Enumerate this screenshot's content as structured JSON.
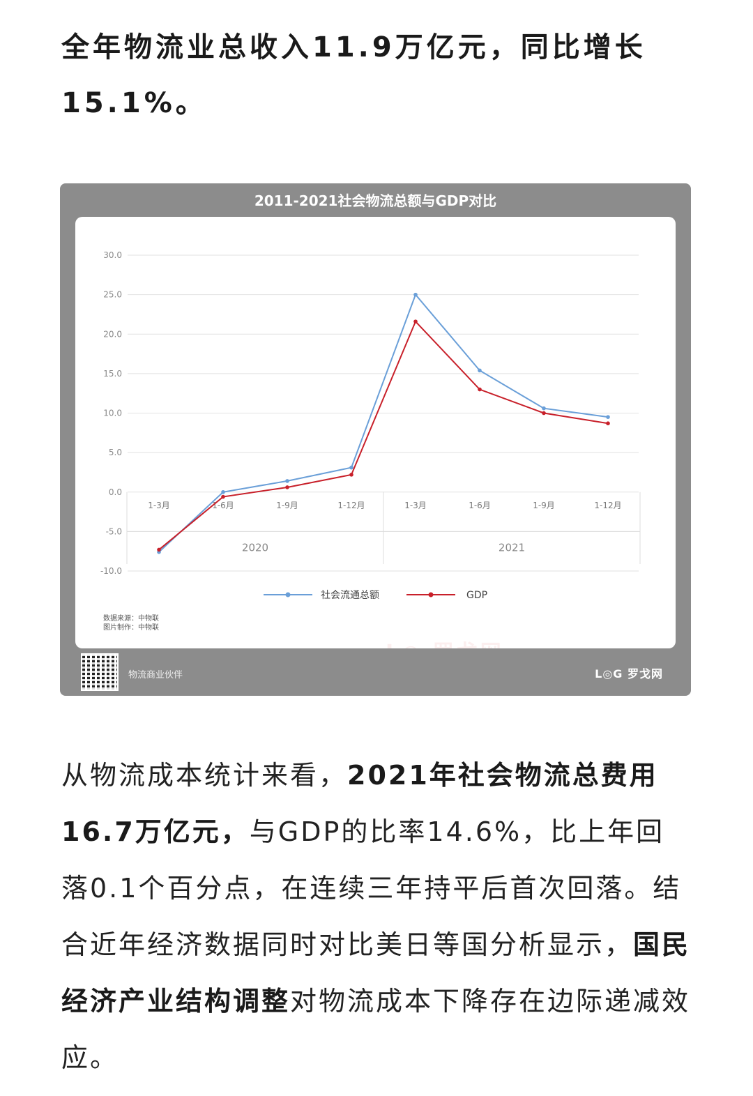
{
  "intro": {
    "text": "全年物流业总收入11.9万亿元，同比增长15.1%。"
  },
  "chart_card": {
    "title": "2011-2021社会物流总额与GDP对比",
    "source_line1": "数据来源：中物联",
    "source_line2": "图片制作：中物联",
    "footer_partner": "物流商业伙伴",
    "footer_logo": "L◎G 罗戈网",
    "watermark": "L◎ 罗戈网"
  },
  "chart_data": {
    "type": "line",
    "title": "2011-2021社会物流总额与GDP对比",
    "xlabel": "",
    "ylabel": "",
    "ylim": [
      -10,
      30
    ],
    "yticks": [
      "30.0",
      "25.0",
      "20.0",
      "15.0",
      "10.0",
      "5.0",
      "0.0",
      "-5.0",
      "-10.0"
    ],
    "categories": [
      "1-3月",
      "1-6月",
      "1-9月",
      "1-12月",
      "1-3月",
      "1-6月",
      "1-9月",
      "1-12月"
    ],
    "groups": [
      {
        "label": "2020",
        "span": 4
      },
      {
        "label": "2021",
        "span": 4
      }
    ],
    "series": [
      {
        "name": "社会流通总额",
        "color": "#6a9fd8",
        "values": [
          -7.6,
          0.0,
          1.4,
          3.1,
          25.0,
          15.4,
          10.6,
          9.5
        ]
      },
      {
        "name": "GDP",
        "color": "#c8202a",
        "values": [
          -7.3,
          -0.6,
          0.6,
          2.2,
          21.6,
          13.0,
          10.0,
          8.7
        ]
      }
    ],
    "grid": true,
    "legend": "bottom"
  },
  "body": {
    "p1": "从物流成本统计来看，",
    "p2_bold": "2021年社会物流总费用16.7万亿元，",
    "p3": "与GDP的比率14.6%，比上年回落0.1个百分点，在连续三年持平后首次回落。结合近年经济数据同时对比美日等国分析显示，",
    "p4_bold": "国民经济产业结构调整",
    "p5": "对物流成本下降存在边际递减效应。"
  }
}
